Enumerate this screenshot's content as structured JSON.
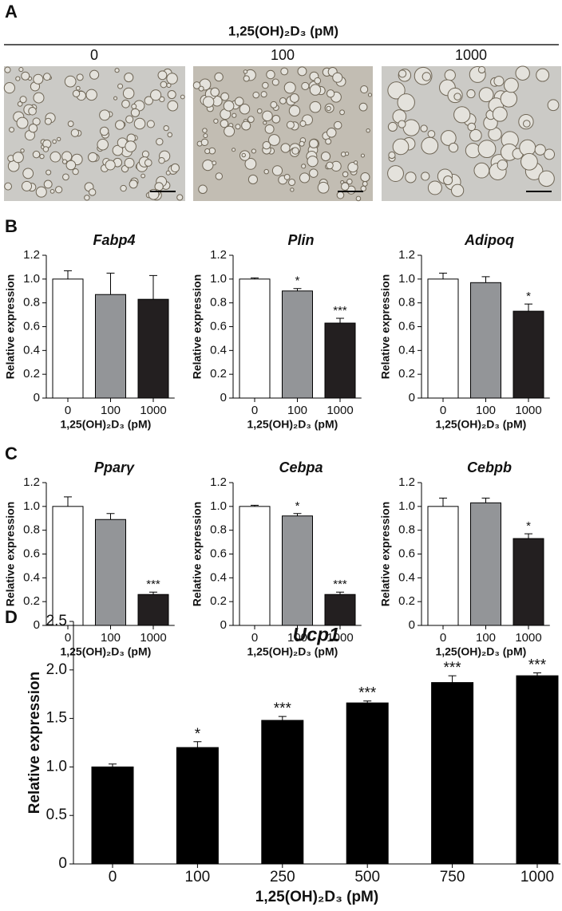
{
  "panel_labels": [
    "A",
    "B",
    "C",
    "D"
  ],
  "panel_a": {
    "title": "1,25(OH)₂D₃ (pM)",
    "images": [
      "0",
      "100",
      "1000"
    ]
  },
  "chart_data": [
    {
      "type": "bar",
      "title": "Fabp4",
      "ylabel": "Relative expression",
      "xlabel": "1,25(OH)₂D₃ (pM)",
      "categories": [
        "0",
        "100",
        "1000"
      ],
      "values": [
        1.0,
        0.87,
        0.83
      ],
      "errors": [
        0.07,
        0.18,
        0.2
      ],
      "annotations": [
        null,
        null,
        null
      ],
      "colors": [
        "#ffffff",
        "#939598",
        "#231f20"
      ],
      "ylim": [
        0,
        1.2
      ],
      "yticks": [
        0,
        0.2,
        0.4,
        0.6,
        0.8,
        {
          "value": 1,
          "label": "1.0"
        },
        1.2
      ]
    },
    {
      "type": "bar",
      "title": "Plin",
      "ylabel": "Relative expression",
      "xlabel": "1,25(OH)₂D₃ (pM)",
      "categories": [
        "0",
        "100",
        "1000"
      ],
      "values": [
        1.0,
        0.9,
        0.63
      ],
      "errors": [
        0.01,
        0.02,
        0.04
      ],
      "annotations": [
        null,
        "*",
        "***"
      ],
      "colors": [
        "#ffffff",
        "#939598",
        "#231f20"
      ],
      "ylim": [
        0,
        1.2
      ],
      "yticks": [
        0,
        0.2,
        0.4,
        0.6,
        0.8,
        {
          "value": 1,
          "label": "1.0"
        },
        1.2
      ]
    },
    {
      "type": "bar",
      "title": "Adipoq",
      "ylabel": "Relative expression",
      "xlabel": "1,25(OH)₂D₃ (pM)",
      "categories": [
        "0",
        "100",
        "1000"
      ],
      "values": [
        1.0,
        0.97,
        0.73
      ],
      "errors": [
        0.05,
        0.05,
        0.06
      ],
      "annotations": [
        null,
        null,
        "*"
      ],
      "colors": [
        "#ffffff",
        "#939598",
        "#231f20"
      ],
      "ylim": [
        0,
        1.2
      ],
      "yticks": [
        0,
        0.2,
        0.4,
        0.6,
        0.8,
        {
          "value": 1,
          "label": "1.0"
        },
        1.2
      ]
    },
    {
      "type": "bar",
      "title": "Pparγ",
      "ylabel": "Relative expression",
      "xlabel": "1,25(OH)₂D₃ (pM)",
      "categories": [
        "0",
        "100",
        "1000"
      ],
      "values": [
        1.0,
        0.89,
        0.26
      ],
      "errors": [
        0.08,
        0.05,
        0.02
      ],
      "annotations": [
        null,
        null,
        "***"
      ],
      "colors": [
        "#ffffff",
        "#939598",
        "#231f20"
      ],
      "ylim": [
        0,
        1.2
      ],
      "yticks": [
        0,
        0.2,
        0.4,
        0.6,
        0.8,
        {
          "value": 1,
          "label": "1.0"
        },
        1.2
      ]
    },
    {
      "type": "bar",
      "title": "Cebpa",
      "ylabel": "Relative expression",
      "xlabel": "1,25(OH)₂D₃ (pM)",
      "categories": [
        "0",
        "100",
        "1000"
      ],
      "values": [
        1.0,
        0.92,
        0.26
      ],
      "errors": [
        0.01,
        0.02,
        0.02
      ],
      "annotations": [
        null,
        "*",
        "***"
      ],
      "colors": [
        "#ffffff",
        "#939598",
        "#231f20"
      ],
      "ylim": [
        0,
        1.2
      ],
      "yticks": [
        0,
        0.2,
        0.4,
        0.6,
        0.8,
        {
          "value": 1,
          "label": "1.0"
        },
        1.2
      ]
    },
    {
      "type": "bar",
      "title": "Cebpb",
      "ylabel": "Relative expression",
      "xlabel": "1,25(OH)₂D₃ (pM)",
      "categories": [
        "0",
        "100",
        "1000"
      ],
      "values": [
        1.0,
        1.03,
        0.73
      ],
      "errors": [
        0.07,
        0.04,
        0.04
      ],
      "annotations": [
        null,
        null,
        "*"
      ],
      "colors": [
        "#ffffff",
        "#939598",
        "#231f20"
      ],
      "ylim": [
        0,
        1.2
      ],
      "yticks": [
        0,
        0.2,
        0.4,
        0.6,
        0.8,
        {
          "value": 1,
          "label": "1.0"
        },
        1.2
      ]
    },
    {
      "type": "bar",
      "title": "Ucp1",
      "ylabel": "Relative expression",
      "xlabel": "1,25(OH)₂D₃ (pM)",
      "categories": [
        "0",
        "100",
        "250",
        "500",
        "750",
        "1000"
      ],
      "values": [
        1.0,
        1.2,
        1.48,
        1.66,
        1.87,
        1.94
      ],
      "errors": [
        0.03,
        0.06,
        0.04,
        0.02,
        0.07,
        0.03
      ],
      "annotations": [
        null,
        "*",
        "***",
        "***",
        "***",
        "***"
      ],
      "colors": [
        "#000000",
        "#000000",
        "#000000",
        "#000000",
        "#000000",
        "#000000"
      ],
      "ylim": [
        0,
        2.5
      ],
      "yticks": [
        0,
        0.5,
        {
          "value": 1,
          "label": "1.0"
        },
        1.5,
        {
          "value": 2,
          "label": "2.0"
        },
        2.5
      ]
    }
  ]
}
